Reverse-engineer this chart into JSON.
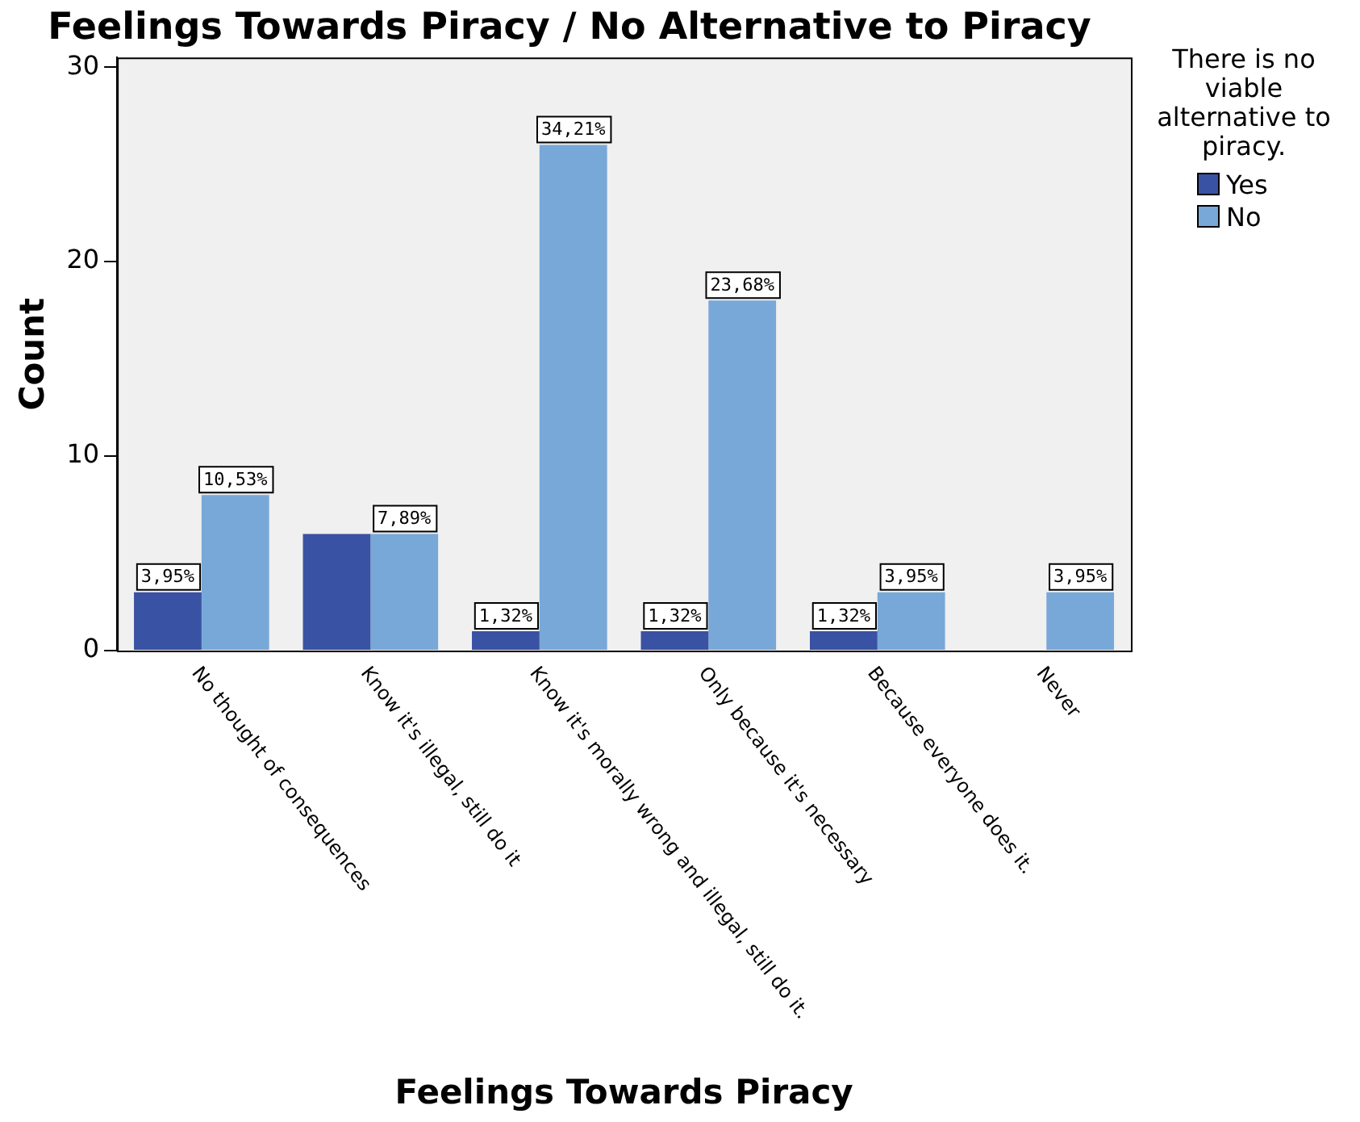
{
  "chart_data": {
    "type": "bar",
    "title": "Feelings Towards Piracy / No Alternative to Piracy",
    "xlabel": "Feelings Towards Piracy",
    "ylabel": "Count",
    "legend_title": "There is no viable alternative to piracy.",
    "categories": [
      "No thought of consequences",
      "Know it's illegal, still do it",
      "Know it's morally wrong and illegal, still do it.",
      "Only because it's necessary",
      "Because everyone does it.",
      "Never"
    ],
    "series": [
      {
        "name": "Yes",
        "color": "#3a52a3",
        "values": [
          3,
          6,
          1,
          1,
          1,
          0
        ]
      },
      {
        "name": "No",
        "color": "#78a8d8",
        "values": [
          8,
          6,
          26,
          18,
          3,
          3
        ]
      }
    ],
    "annotations": [
      {
        "text": "3,95%",
        "x": "No thought of consequences",
        "y": 3
      },
      {
        "text": "10,53%",
        "x": "No thought of consequences",
        "y": 8
      },
      {
        "text": "7,89%",
        "x": "Know it's illegal, still do it",
        "y": 6
      },
      {
        "text": "1,32%",
        "x": "Know it's morally wrong and illegal, still do it.",
        "y": 1
      },
      {
        "text": "34,21%",
        "x": "Know it's morally wrong and illegal, still do it.",
        "y": 26
      },
      {
        "text": "1,32%",
        "x": "Only because it's necessary",
        "y": 1
      },
      {
        "text": "23,68%",
        "x": "Only because it's necessary",
        "y": 18
      },
      {
        "text": "1,32%",
        "x": "Because everyone does it.",
        "y": 1
      },
      {
        "text": "3,95%",
        "x": "Because everyone does it.",
        "y": 3
      },
      {
        "text": "3,95%",
        "x": "Never",
        "y": 3
      }
    ],
    "ylim": [
      0,
      30.5
    ],
    "yticks": [
      0,
      10,
      20,
      30
    ],
    "grid": false,
    "legend": "top right"
  }
}
